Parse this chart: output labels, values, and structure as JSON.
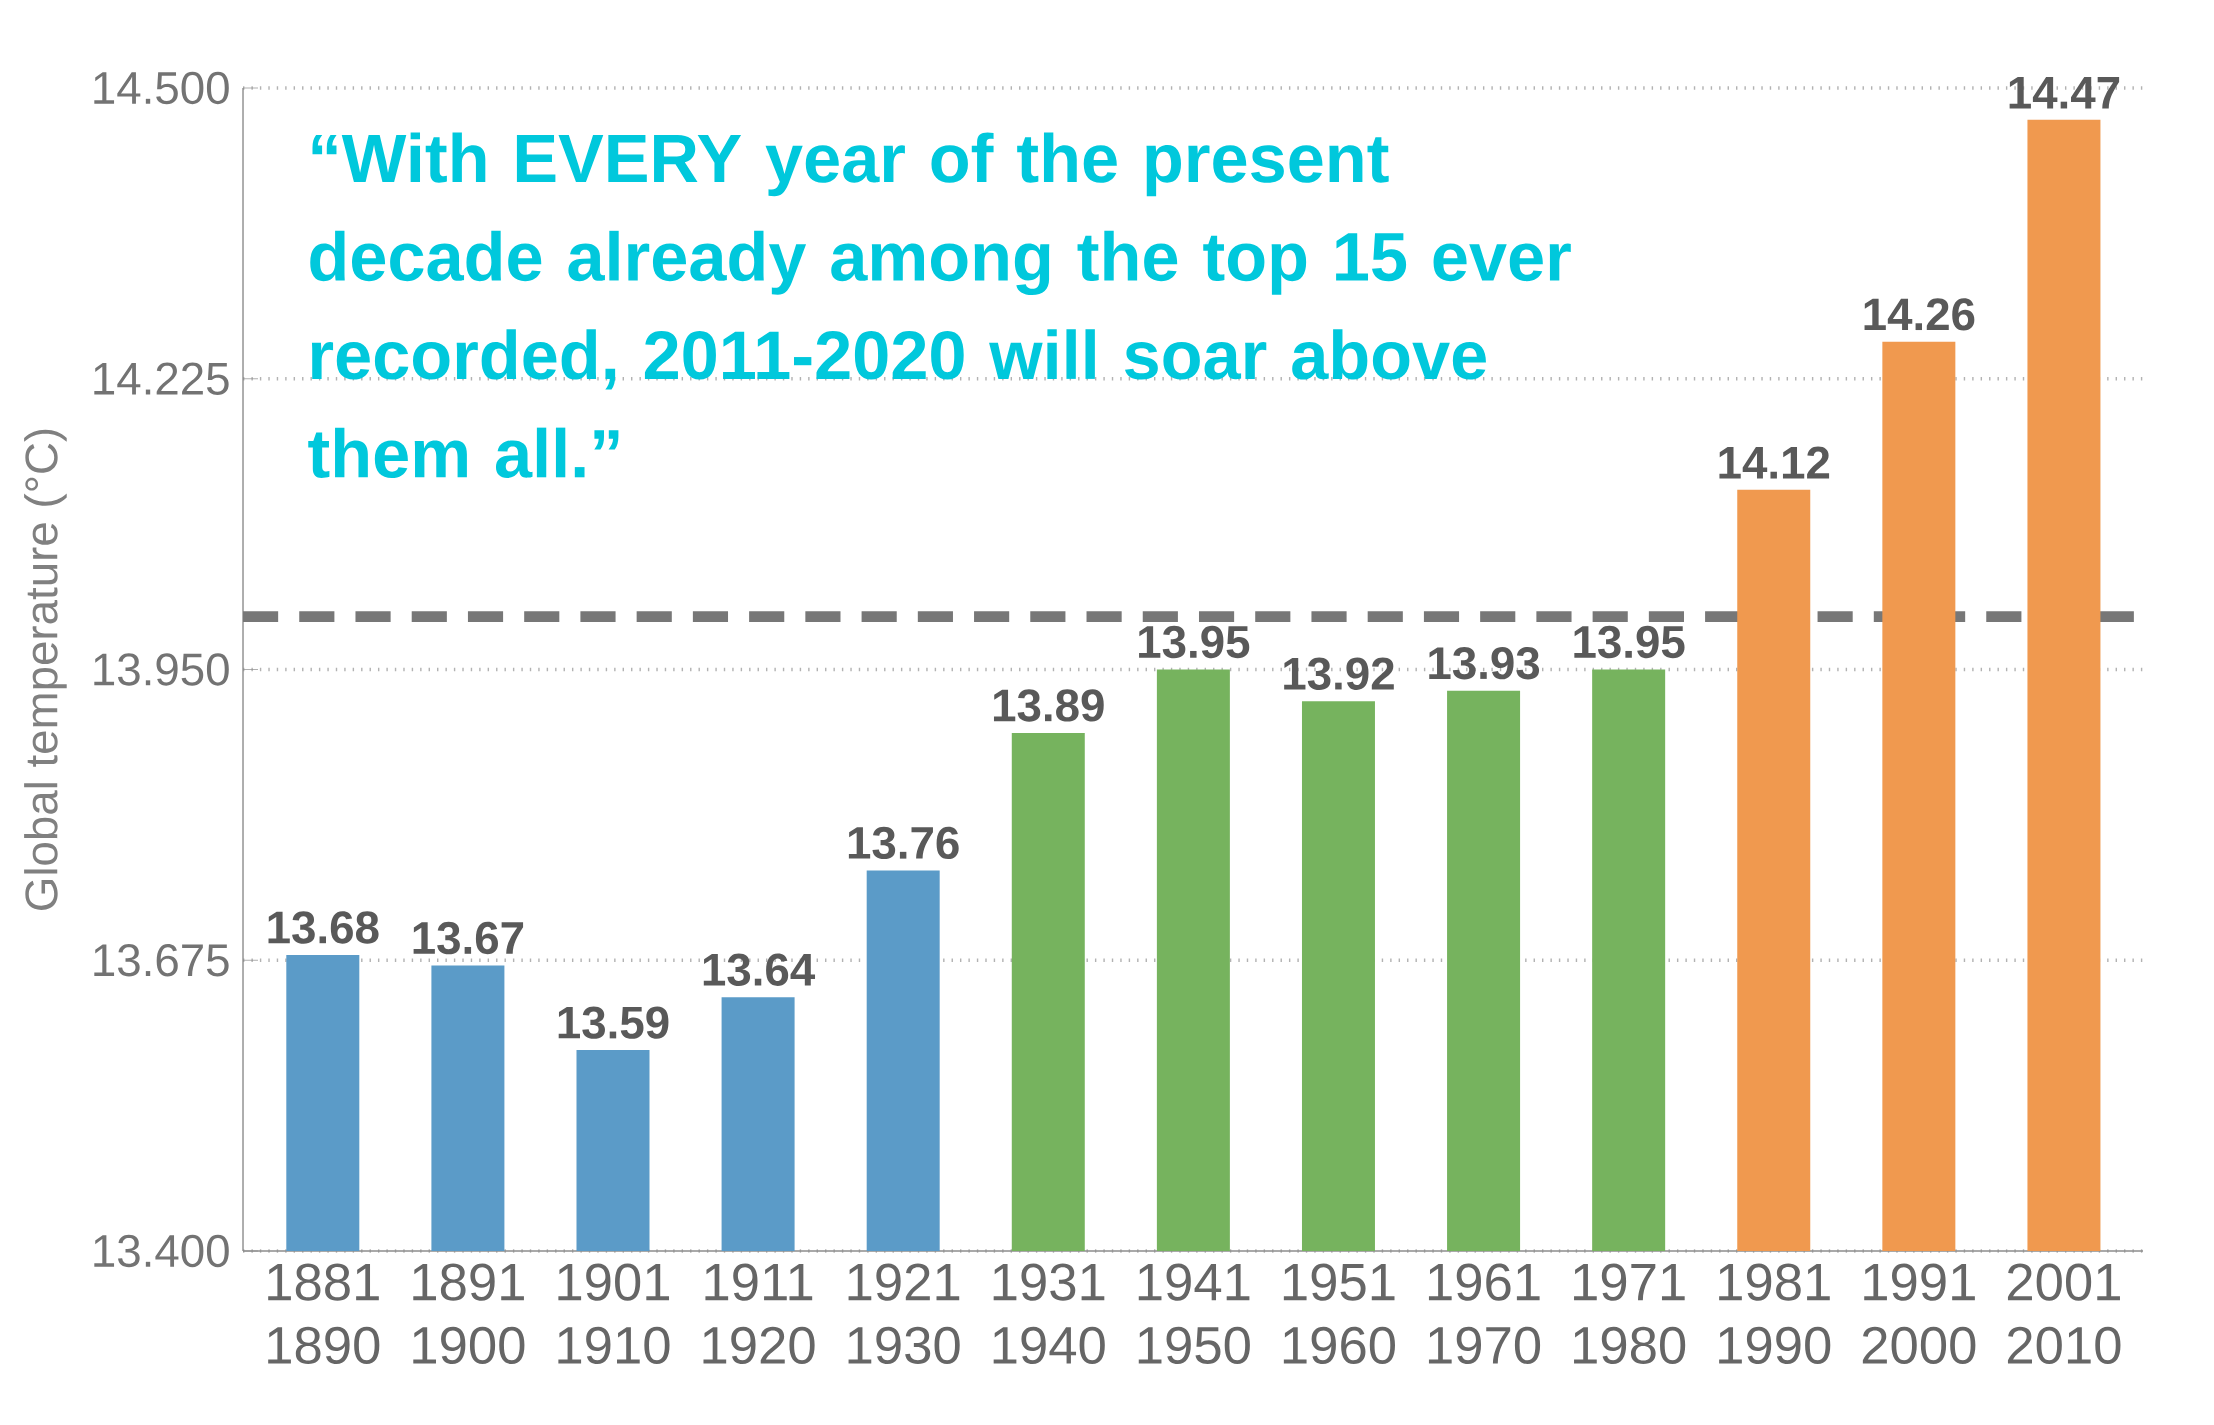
{
  "chart_data": {
    "type": "bar",
    "ylabel": "Global temperature (°C)",
    "categories": [
      "1881 1890",
      "1891 1900",
      "1901 1910",
      "1911 1920",
      "1921 1930",
      "1931 1940",
      "1941 1950",
      "1951 1960",
      "1961 1970",
      "1971 1980",
      "1981 1990",
      "1991 2000",
      "2001 2010"
    ],
    "values": [
      13.68,
      13.67,
      13.59,
      13.64,
      13.76,
      13.89,
      13.95,
      13.92,
      13.93,
      13.95,
      14.12,
      14.26,
      14.47
    ],
    "colors": [
      "#5b9bc8",
      "#5b9bc8",
      "#5b9bc8",
      "#5b9bc8",
      "#5b9bc8",
      "#76b35e",
      "#76b35e",
      "#76b35e",
      "#76b35e",
      "#76b35e",
      "#f0994f",
      "#f0994f",
      "#f0994f"
    ],
    "ylim": [
      13.4,
      14.5
    ],
    "yticks": [
      {
        "value": 13.4,
        "label": "13.400"
      },
      {
        "value": 13.675,
        "label": "13.675"
      },
      {
        "value": 13.95,
        "label": "13.950"
      },
      {
        "value": 14.225,
        "label": "14.225"
      },
      {
        "value": 14.5,
        "label": "14.500"
      }
    ],
    "grid": "y",
    "data_labels": true,
    "ref_lines": [
      {
        "axis": "y",
        "value": 14.0,
        "color": "#777777",
        "line_style": "dashed"
      }
    ],
    "annotations": [
      "“With EVERY year of the present decade already among the top 15 ever recorded, 2011-2020 will soar above them all.”"
    ]
  }
}
